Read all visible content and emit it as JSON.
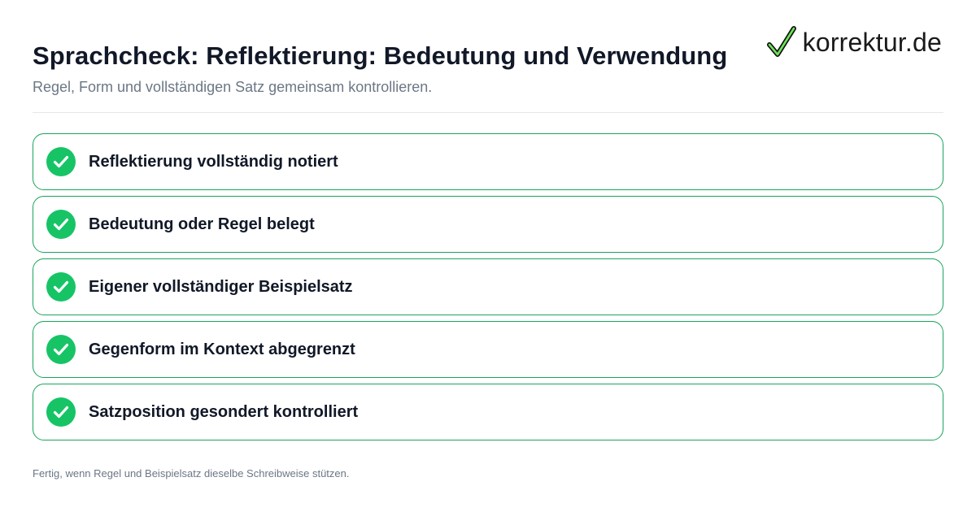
{
  "header": {
    "title": "Sprachcheck: Reflektierung: Bedeutung und Verwendung",
    "subtitle": "Regel, Form und vollständigen Satz gemeinsam kontrollieren."
  },
  "logo": {
    "text": "korrektur.de",
    "icon": "checkmark-icon"
  },
  "checklist": {
    "items": [
      {
        "label": "Reflektierung vollständig notiert",
        "status": "checked",
        "icon": "check-circle-icon"
      },
      {
        "label": "Bedeutung oder Regel belegt",
        "status": "checked",
        "icon": "check-circle-icon"
      },
      {
        "label": "Eigener vollständiger Beispielsatz",
        "status": "checked",
        "icon": "check-circle-icon"
      },
      {
        "label": "Gegenform im Kontext abgegrenzt",
        "status": "checked",
        "icon": "check-circle-icon"
      },
      {
        "label": "Satzposition gesondert kontrolliert",
        "status": "checked",
        "icon": "check-circle-icon"
      }
    ]
  },
  "footer": {
    "note": "Fertig, wenn Regel und Beispielsatz dieselbe Schreibweise stützen."
  },
  "colors": {
    "accent": "#16c466",
    "border": "#1aa45d",
    "title": "#111827",
    "muted": "#6b7785"
  }
}
